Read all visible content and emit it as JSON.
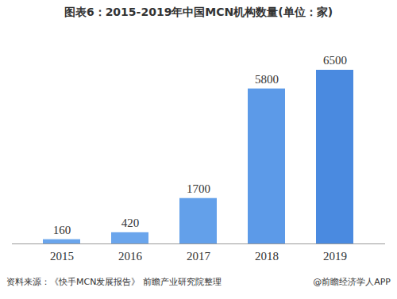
{
  "chart_data": {
    "type": "bar",
    "title": "图表6：2015-2019年中国MCN机构数量(单位：家)",
    "categories": [
      "2015",
      "2016",
      "2017",
      "2018",
      "2019"
    ],
    "values": [
      160,
      420,
      1700,
      5800,
      6500
    ],
    "colors": [
      "#6aa5ec",
      "#6aa5ec",
      "#63a0ea",
      "#5c9ae8",
      "#4a8ae0"
    ],
    "data_labels": true,
    "tick_labels": "x",
    "annotations": [
      "资料来源：《快手MCN发展报告》 前瞻产业研究院整理",
      "@前瞻经济学人APP"
    ]
  }
}
